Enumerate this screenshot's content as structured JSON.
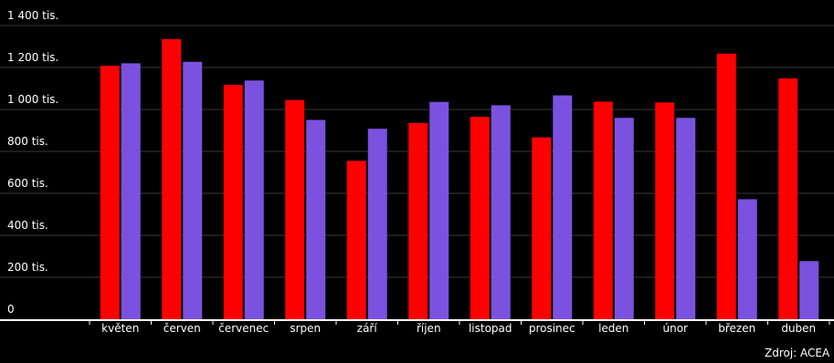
{
  "chart_data": {
    "type": "bar",
    "categories": [
      "květen",
      "červen",
      "červenec",
      "srpen",
      "září",
      "říjen",
      "listopad",
      "prosinec",
      "leden",
      "únor",
      "březen",
      "duben"
    ],
    "series": [
      {
        "values": [
          1208000,
          1335000,
          1117000,
          1045000,
          755000,
          935000,
          965000,
          867000,
          1037000,
          1033000,
          1266000,
          1148000
        ],
        "color": "#ff0000"
      },
      {
        "values": [
          1220000,
          1227000,
          1138000,
          950000,
          908000,
          1036000,
          1020000,
          1067000,
          960000,
          960000,
          572000,
          277000
        ],
        "color": "#7b52e0"
      }
    ],
    "yticks": [
      {
        "value": 0,
        "label": "0"
      },
      {
        "value": 200000,
        "label": "200 tis."
      },
      {
        "value": 400000,
        "label": "400 tis."
      },
      {
        "value": 600000,
        "label": "600 tis."
      },
      {
        "value": 800000,
        "label": "800 tis."
      },
      {
        "value": 1000000,
        "label": "1 000 tis."
      },
      {
        "value": 1200000,
        "label": "1 200 tis."
      },
      {
        "value": 1400000,
        "label": "1 400 tis."
      }
    ],
    "ylim": [
      0,
      1400000
    ],
    "grid": true,
    "title": "",
    "xlabel": "",
    "ylabel": ""
  },
  "source_note": "Zdroj: ACEA",
  "colors": {
    "background": "#000000",
    "grid": "#3a3a3a",
    "axis": "#ffffff",
    "text": "#ffffff"
  }
}
